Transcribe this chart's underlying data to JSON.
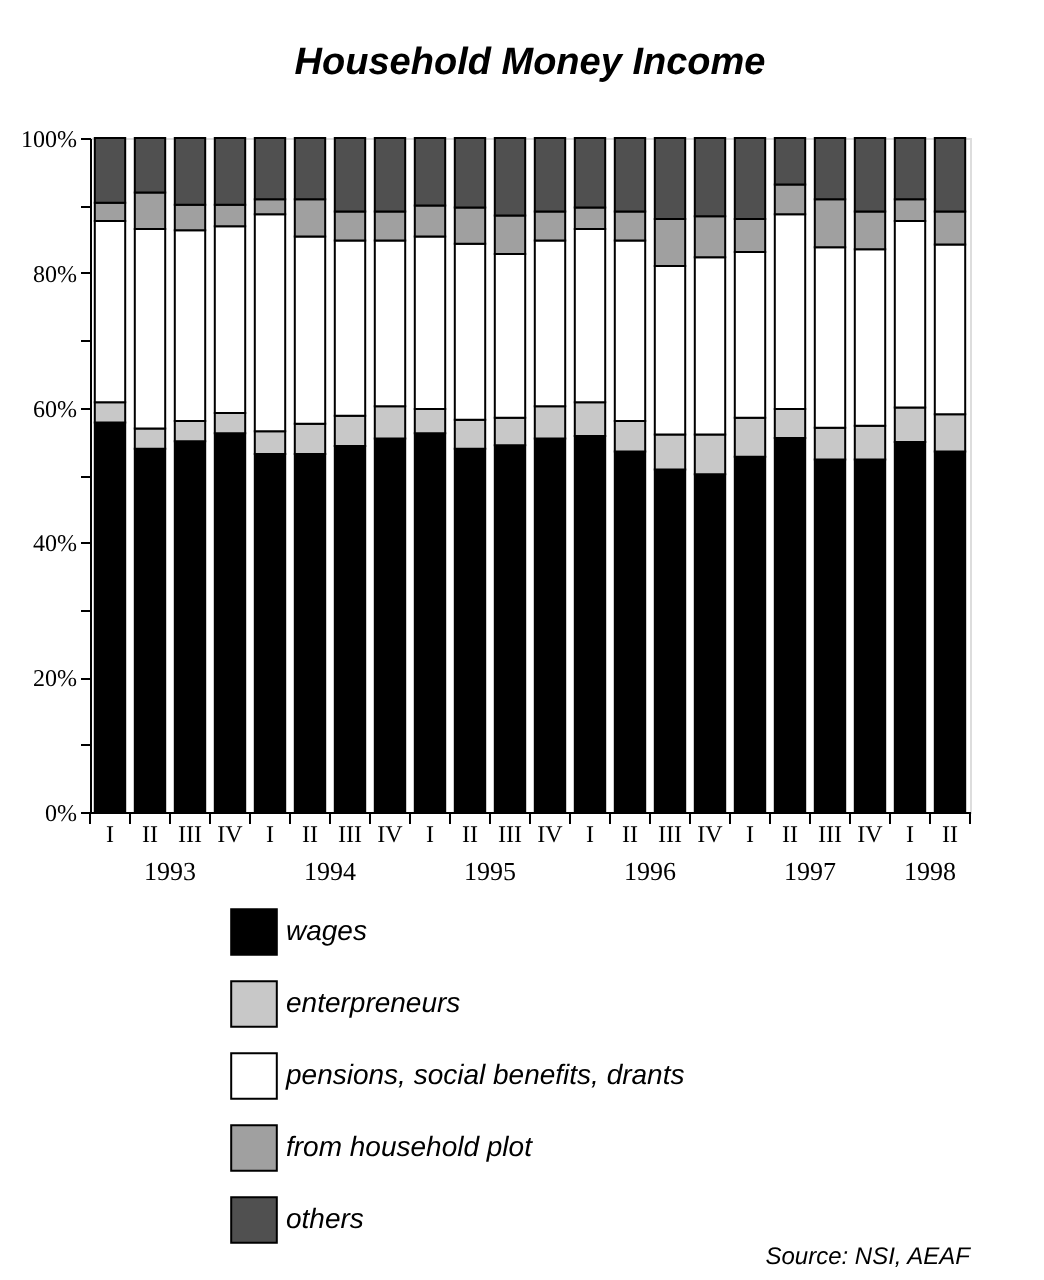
{
  "chart_data": {
    "type": "bar",
    "stacked": true,
    "title": "Household Money Income",
    "categories": [
      "I",
      "II",
      "III",
      "IV",
      "I",
      "II",
      "III",
      "IV",
      "I",
      "II",
      "III",
      "IV",
      "I",
      "II",
      "III",
      "IV",
      "I",
      "II",
      "III",
      "IV",
      "I",
      "II"
    ],
    "series": [
      {
        "name": "wages",
        "color": "#000000",
        "values": [
          57.8,
          53.9,
          55.0,
          56.2,
          53.1,
          53.1,
          54.3,
          55.4,
          56.2,
          53.9,
          54.4,
          55.4,
          55.8,
          53.5,
          50.8,
          50.1,
          52.7,
          55.5,
          52.3,
          52.3,
          54.9,
          53.5
        ]
      },
      {
        "name": "enterpreneurs",
        "color": "#c8c8c8",
        "values": [
          3.0,
          3.0,
          3.0,
          3.0,
          3.4,
          4.5,
          4.5,
          4.8,
          3.6,
          4.3,
          4.1,
          4.8,
          5.0,
          4.5,
          5.2,
          5.9,
          5.8,
          4.3,
          4.7,
          5.0,
          5.1,
          5.5
        ]
      },
      {
        "name": "pensions, social benefits, drants",
        "color": "#ffffff",
        "values": [
          26.9,
          29.6,
          28.3,
          27.7,
          32.2,
          27.8,
          26.0,
          24.6,
          25.6,
          26.1,
          24.3,
          24.6,
          25.7,
          26.8,
          25.0,
          26.3,
          24.6,
          28.9,
          26.8,
          26.2,
          27.7,
          25.2
        ]
      },
      {
        "name": "from household plot",
        "color": "#a0a0a0",
        "values": [
          2.7,
          5.4,
          3.8,
          3.2,
          2.2,
          5.5,
          4.3,
          4.3,
          4.6,
          5.4,
          5.7,
          4.3,
          3.2,
          4.3,
          7.0,
          6.1,
          4.9,
          4.4,
          7.1,
          5.6,
          3.2,
          4.9
        ]
      },
      {
        "name": "others",
        "color": "#505050",
        "values": [
          9.6,
          8.1,
          9.9,
          9.9,
          9.1,
          9.1,
          10.9,
          10.9,
          10.0,
          10.3,
          11.5,
          10.9,
          10.3,
          10.9,
          12.0,
          11.6,
          12.0,
          6.9,
          9.1,
          10.9,
          9.1,
          10.9
        ]
      }
    ],
    "ylim": [
      0,
      100
    ],
    "yticks": [
      {
        "value": 0,
        "label": "0%"
      },
      {
        "value": 10,
        "label": null
      },
      {
        "value": 20,
        "label": "20%"
      },
      {
        "value": 30,
        "label": null
      },
      {
        "value": 40,
        "label": "40%"
      },
      {
        "value": 50,
        "label": null
      },
      {
        "value": 60,
        "label": "60%"
      },
      {
        "value": 70,
        "label": null
      },
      {
        "value": 80,
        "label": "80%"
      },
      {
        "value": 90,
        "label": null
      },
      {
        "value": 100,
        "label": "100%"
      }
    ],
    "annotations": [
      "1993",
      "1994",
      "1995",
      "1996",
      "1997",
      "1998",
      "Source: NSI, AEAF"
    ],
    "legend": "bottom",
    "grid": false
  }
}
